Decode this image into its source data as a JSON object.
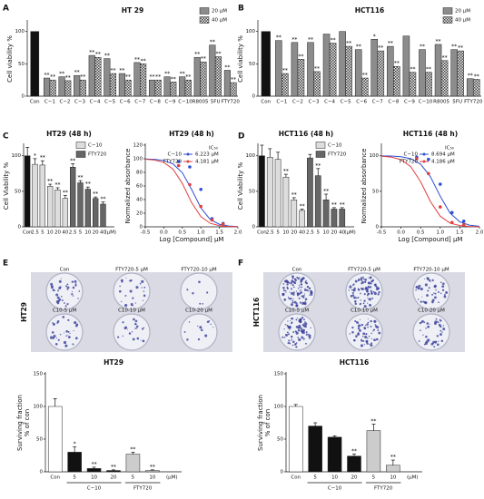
{
  "panel_labels": [
    "A",
    "B",
    "C",
    "D",
    "E",
    "F"
  ],
  "colony_panels": [
    {
      "side_label": "HT29",
      "labels": [
        "Con",
        "FTY720-5 µM",
        "FTY720-10 µM",
        "C10-5 µM",
        "C10-10 µM",
        "C10-20 µM"
      ]
    },
    {
      "side_label": "HCT116",
      "labels": [
        "Con",
        "FTY720-5 µM",
        "FTY720-10 µM",
        "C10-5 µM",
        "C10-10 µM",
        "C10-20 µM"
      ]
    }
  ],
  "chart_data": [
    {
      "type": "bar",
      "title": "HT 29",
      "ylabel": "Cell viability %",
      "categories": [
        "Con",
        "C−1",
        "C−2",
        "C−3",
        "C−4",
        "C−5",
        "C−6",
        "C−7",
        "C−8",
        "C−9",
        "C−10",
        "R8005",
        "5FU",
        "FTY720"
      ],
      "control_value": 100,
      "control_color": "#111111",
      "grouped": true,
      "legend": "top-right",
      "ylim": [
        0,
        115
      ],
      "yticks": [
        0,
        50,
        100
      ],
      "series": [
        {
          "name": "20 µM",
          "color": "#8c8c8c",
          "values": [
            null,
            28,
            30,
            32,
            63,
            58,
            35,
            52,
            25,
            30,
            30,
            60,
            79,
            40
          ],
          "annotations": [
            null,
            "**",
            "**",
            "**",
            "**",
            "**",
            "**",
            "**",
            "**",
            "**",
            "**",
            "**",
            "**",
            "**"
          ]
        },
        {
          "name": "40 µM",
          "color": "#555555",
          "pattern": "checker",
          "values": [
            null,
            25,
            24,
            25,
            60,
            35,
            25,
            50,
            25,
            22,
            25,
            53,
            61,
            21
          ],
          "annotations": [
            null,
            "**",
            "**",
            "**",
            "**",
            "**",
            "**",
            "**",
            "**",
            "**",
            "**",
            "**",
            "**",
            "**"
          ]
        }
      ]
    },
    {
      "type": "bar",
      "title": "HCT116",
      "ylabel": "Cell viability %",
      "categories": [
        "Con",
        "C−1",
        "C−2",
        "C−3",
        "C−4",
        "C−5",
        "C−6",
        "C−7",
        "C−8",
        "C−9",
        "C−10",
        "R8005",
        "5FU",
        "FTY720"
      ],
      "control_value": 100,
      "control_color": "#111111",
      "grouped": true,
      "legend": "top-right",
      "ylim": [
        0,
        115
      ],
      "yticks": [
        0,
        50,
        100
      ],
      "series": [
        {
          "name": "20 µM",
          "color": "#8c8c8c",
          "values": [
            null,
            86,
            83,
            83,
            96,
            100,
            72,
            88,
            77,
            93,
            72,
            80,
            72,
            27
          ],
          "annotations": [
            null,
            "**",
            "**",
            "**",
            null,
            null,
            "**",
            "*",
            "**",
            null,
            "**",
            "**",
            "**",
            "**"
          ]
        },
        {
          "name": "40 µM",
          "color": "#555555",
          "pattern": "checker",
          "values": [
            null,
            35,
            57,
            38,
            82,
            77,
            28,
            70,
            46,
            37,
            37,
            55,
            70,
            26
          ],
          "annotations": [
            null,
            "**",
            "**",
            "**",
            "**",
            "**",
            "**",
            "**",
            "**",
            "**",
            "**",
            "**",
            "**",
            "**"
          ]
        }
      ]
    },
    {
      "type": "bar",
      "title": "HT29 (48 h)",
      "ylabel": "Cell Viability %",
      "categories": [
        "Con",
        "2.5",
        "5",
        "10",
        "20",
        "40",
        "2.5",
        "5",
        "10",
        "20",
        "40",
        "(µM)"
      ],
      "control_value": 100,
      "control_error": 12,
      "control_color": "#111111",
      "grouped": false,
      "legend": "top-right",
      "ylim": [
        0,
        115
      ],
      "yticks": [
        0,
        50,
        100
      ],
      "series": [
        {
          "name": "C−10",
          "color": "#dddddd",
          "values": [
            null,
            88,
            87,
            57,
            52,
            40,
            null,
            null,
            null,
            null,
            null,
            null
          ],
          "errors": [
            null,
            8,
            6,
            3,
            3,
            4,
            null,
            null,
            null,
            null,
            null,
            null
          ],
          "annotations": [
            null,
            "*",
            "**",
            "**",
            "**",
            "**",
            null,
            null,
            null,
            null,
            null,
            null
          ]
        },
        {
          "name": "FTY720",
          "color": "#666666",
          "values": [
            null,
            null,
            null,
            null,
            null,
            null,
            84,
            62,
            53,
            40,
            32,
            null
          ],
          "errors": [
            null,
            null,
            null,
            null,
            null,
            null,
            5,
            3,
            3,
            2,
            3,
            null
          ],
          "annotations": [
            null,
            null,
            null,
            null,
            null,
            null,
            "**",
            "**",
            "**",
            "**",
            "**",
            null
          ]
        }
      ]
    },
    {
      "type": "line",
      "title": "HT29 (48 h)",
      "ylabel": "Normalized absorbance",
      "xlabel": "Log [Compound] µM",
      "legend_title": "IC₅₀",
      "xlim": [
        -0.5,
        2
      ],
      "xticks": [
        -0.5,
        {
          "value": 0,
          "label": "0.0"
        },
        0.5,
        {
          "value": 1,
          "label": "1.0"
        },
        1.5,
        {
          "value": 2,
          "label": "2.0"
        }
      ],
      "ylim": [
        0,
        120
      ],
      "yticks": [
        0,
        20,
        40,
        60,
        80,
        100,
        120
      ],
      "x": [
        0.4,
        0.7,
        1.0,
        1.3,
        1.6
      ],
      "fit_x": [
        -0.5,
        -0.25,
        0,
        0.25,
        0.5,
        0.75,
        1,
        1.25,
        1.5,
        1.75,
        2
      ],
      "series": [
        {
          "name": "C−10",
          "color": "#3050d0",
          "ic50_label": "6.223 µM",
          "values": [
            96,
            88,
            55,
            12,
            5
          ],
          "fit_values": [
            99.7,
            99.2,
            97.5,
            92.4,
            79.5,
            55.0,
            27.9,
            10.9,
            3.7,
            1.2,
            0.4
          ]
        },
        {
          "name": "FTY720",
          "color": "#e04040",
          "ic50_label": "4.181 µM",
          "values": [
            90,
            62,
            30,
            10,
            4
          ],
          "fit_values": [
            99.4,
            98.2,
            94.6,
            84.7,
            63.6,
            35.6,
            14.9,
            5.2,
            1.7,
            0.5,
            0.2
          ]
        }
      ]
    },
    {
      "type": "bar",
      "title": "HCT116 (48 h)",
      "ylabel": "Cell Viability %",
      "categories": [
        "Con",
        "2.5",
        "5",
        "10",
        "20",
        "40",
        "2.5",
        "5",
        "10",
        "20",
        "40",
        "(µM)"
      ],
      "control_value": 100,
      "control_error": 15,
      "control_color": "#111111",
      "grouped": false,
      "legend": "top-right",
      "ylim": [
        0,
        115
      ],
      "yticks": [
        0,
        50,
        100
      ],
      "series": [
        {
          "name": "C−10",
          "color": "#dddddd",
          "values": [
            null,
            98,
            95,
            70,
            38,
            23,
            null,
            null,
            null,
            null,
            null,
            null
          ],
          "errors": [
            null,
            12,
            10,
            4,
            3,
            2,
            null,
            null,
            null,
            null,
            null,
            null
          ],
          "annotations": [
            null,
            null,
            null,
            "**",
            "**",
            "**",
            null,
            null,
            null,
            null,
            null,
            null
          ]
        },
        {
          "name": "FTY720",
          "color": "#666666",
          "values": [
            null,
            null,
            null,
            null,
            null,
            null,
            97,
            72,
            38,
            25,
            25,
            null
          ],
          "errors": [
            null,
            null,
            null,
            null,
            null,
            null,
            5,
            10,
            8,
            2,
            2,
            null
          ],
          "annotations": [
            null,
            null,
            null,
            null,
            null,
            null,
            null,
            "**",
            "**",
            "**",
            "**",
            null
          ]
        }
      ]
    },
    {
      "type": "line",
      "title": "HCT116 (48 h)",
      "ylabel": "Normalized absorbance",
      "xlabel": "Log [Compound] µM",
      "legend_title": "IC₅₀",
      "xlim": [
        -0.5,
        2
      ],
      "xticks": [
        -0.5,
        {
          "value": 0,
          "label": "0.0"
        },
        0.5,
        {
          "value": 1,
          "label": "1.0"
        },
        1.5,
        {
          "value": 2,
          "label": "2.0"
        }
      ],
      "ylim": [
        0,
        115
      ],
      "yticks": [
        0,
        50,
        100
      ],
      "x": [
        0.4,
        0.7,
        1.0,
        1.3,
        1.6
      ],
      "fit_x": [
        -0.5,
        -0.25,
        0,
        0.25,
        0.5,
        0.75,
        1,
        1.25,
        1.5,
        1.75,
        2
      ],
      "series": [
        {
          "name": "C−10",
          "color": "#3050d0",
          "ic50_label": "8.694 µM",
          "values": [
            98,
            95,
            60,
            20,
            8
          ],
          "fit_values": [
            99.9,
            99.6,
            98.7,
            96.0,
            88.3,
            70.5,
            43.1,
            19.3,
            7.0,
            2.3,
            0.8
          ]
        },
        {
          "name": "FTY720",
          "color": "#e04040",
          "ic50_label": "4.186 µM",
          "values": [
            96,
            75,
            28,
            6,
            3
          ],
          "fit_values": [
            99.4,
            98.2,
            94.6,
            84.7,
            63.6,
            35.6,
            14.9,
            5.2,
            1.7,
            0.5,
            0.2
          ]
        }
      ]
    },
    {
      "type": "bar",
      "title": "HT29",
      "ylabel": [
        "Surviving fraction",
        "% of con"
      ],
      "categories": [
        "Con",
        "5",
        "10",
        "20",
        "5",
        "10",
        "(µM)"
      ],
      "control_value": 100,
      "control_error": 12,
      "control_color": "#ffffff",
      "grouped": false,
      "group_labels": true,
      "ylim": [
        0,
        150
      ],
      "yticks": [
        0,
        50,
        100,
        150
      ],
      "series": [
        {
          "name": "C−10",
          "color": "#111111",
          "values": [
            null,
            30,
            5,
            2,
            null,
            null,
            null
          ],
          "errors": [
            null,
            8,
            2,
            1,
            null,
            null,
            null
          ],
          "annotations": [
            null,
            "*",
            "**",
            "**",
            null,
            null,
            null
          ]
        },
        {
          "name": "FTY720",
          "color": "#cccccc",
          "values": [
            null,
            null,
            null,
            null,
            27,
            2,
            null
          ],
          "errors": [
            null,
            null,
            null,
            null,
            3,
            1,
            null
          ],
          "annotations": [
            null,
            null,
            null,
            null,
            "**",
            "**",
            null
          ]
        }
      ]
    },
    {
      "type": "bar",
      "title": "HCT116",
      "ylabel": [
        "Surviving fraction",
        "% of con"
      ],
      "categories": [
        "Con",
        "5",
        "10",
        "20",
        "5",
        "10",
        "(µM)"
      ],
      "control_value": 100,
      "control_error": 3,
      "control_color": "#ffffff",
      "grouped": false,
      "group_labels": true,
      "ylim": [
        0,
        150
      ],
      "yticks": [
        0,
        50,
        100,
        150
      ],
      "series": [
        {
          "name": "C−10",
          "color": "#111111",
          "values": [
            null,
            70,
            53,
            24,
            null,
            null,
            null
          ],
          "errors": [
            null,
            5,
            2,
            3,
            null,
            null,
            null
          ],
          "annotations": [
            null,
            null,
            null,
            "**",
            null,
            null,
            null
          ]
        },
        {
          "name": "FTY720",
          "color": "#cccccc",
          "values": [
            null,
            null,
            null,
            null,
            63,
            10,
            null
          ],
          "errors": [
            null,
            null,
            null,
            null,
            10,
            8,
            null
          ],
          "annotations": [
            null,
            null,
            null,
            null,
            "**",
            "**",
            null
          ]
        }
      ]
    }
  ]
}
